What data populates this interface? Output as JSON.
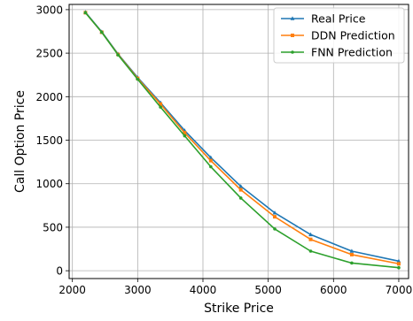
{
  "chart_data": {
    "type": "line",
    "xlabel": "Strike Price",
    "ylabel": "Call Option Price",
    "xlim": [
      1950,
      7150
    ],
    "ylim": [
      -90,
      3060
    ],
    "xticks": [
      2000,
      3000,
      4000,
      5000,
      6000,
      7000
    ],
    "yticks": [
      0,
      500,
      1000,
      1500,
      2000,
      2500,
      3000
    ],
    "grid": true,
    "legend_position": "top-right",
    "x": [
      2200,
      2450,
      2700,
      3000,
      3350,
      3720,
      4120,
      4580,
      5100,
      5650,
      6280,
      7000
    ],
    "series": [
      {
        "name": "Real Price",
        "color": "#1f77b4",
        "marker": "triangle",
        "values": [
          2970,
          2745,
          2490,
          2220,
          1930,
          1610,
          1300,
          970,
          665,
          415,
          225,
          110
        ]
      },
      {
        "name": "DDN Prediction",
        "color": "#ff7f0e",
        "marker": "square",
        "values": [
          2965,
          2740,
          2485,
          2210,
          1915,
          1585,
          1265,
          930,
          620,
          360,
          185,
          80
        ]
      },
      {
        "name": "FNN Prediction",
        "color": "#2ca02c",
        "marker": "circle",
        "values": [
          2965,
          2740,
          2480,
          2200,
          1880,
          1550,
          1195,
          835,
          480,
          225,
          88,
          35
        ]
      }
    ]
  }
}
